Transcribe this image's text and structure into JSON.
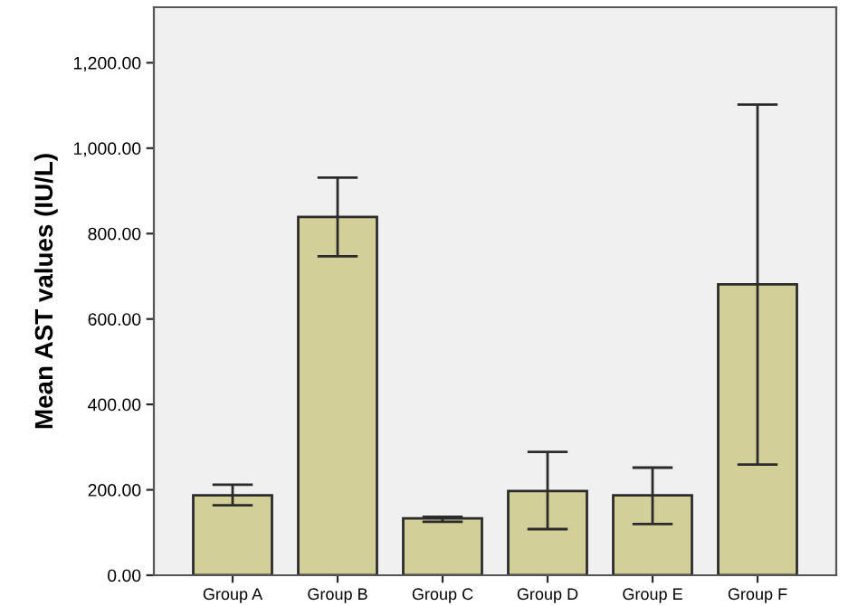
{
  "chart_data": {
    "type": "bar",
    "ylabel": "Mean AST values (IU/L)",
    "categories": [
      "Group A",
      "Group B",
      "Group C",
      "Group D",
      "Group E",
      "Group F"
    ],
    "values": [
      187,
      839,
      133,
      197,
      187,
      681
    ],
    "errors": [
      [
        164,
        212
      ],
      [
        747,
        931
      ],
      [
        125,
        137
      ],
      [
        108,
        289
      ],
      [
        120,
        252
      ],
      [
        259,
        1102
      ]
    ],
    "color": "#d3cf98",
    "ylim": [
      0,
      1330
    ],
    "yticks": [
      {
        "value": 0,
        "label": "0.00"
      },
      {
        "value": 200,
        "label": "200.00"
      },
      {
        "value": 400,
        "label": "400.00"
      },
      {
        "value": 600,
        "label": "600.00"
      },
      {
        "value": 800,
        "label": "800.00"
      },
      {
        "value": 1000,
        "label": "1,000.00"
      },
      {
        "value": 1200,
        "label": "1,200.00"
      }
    ],
    "grid": false
  }
}
